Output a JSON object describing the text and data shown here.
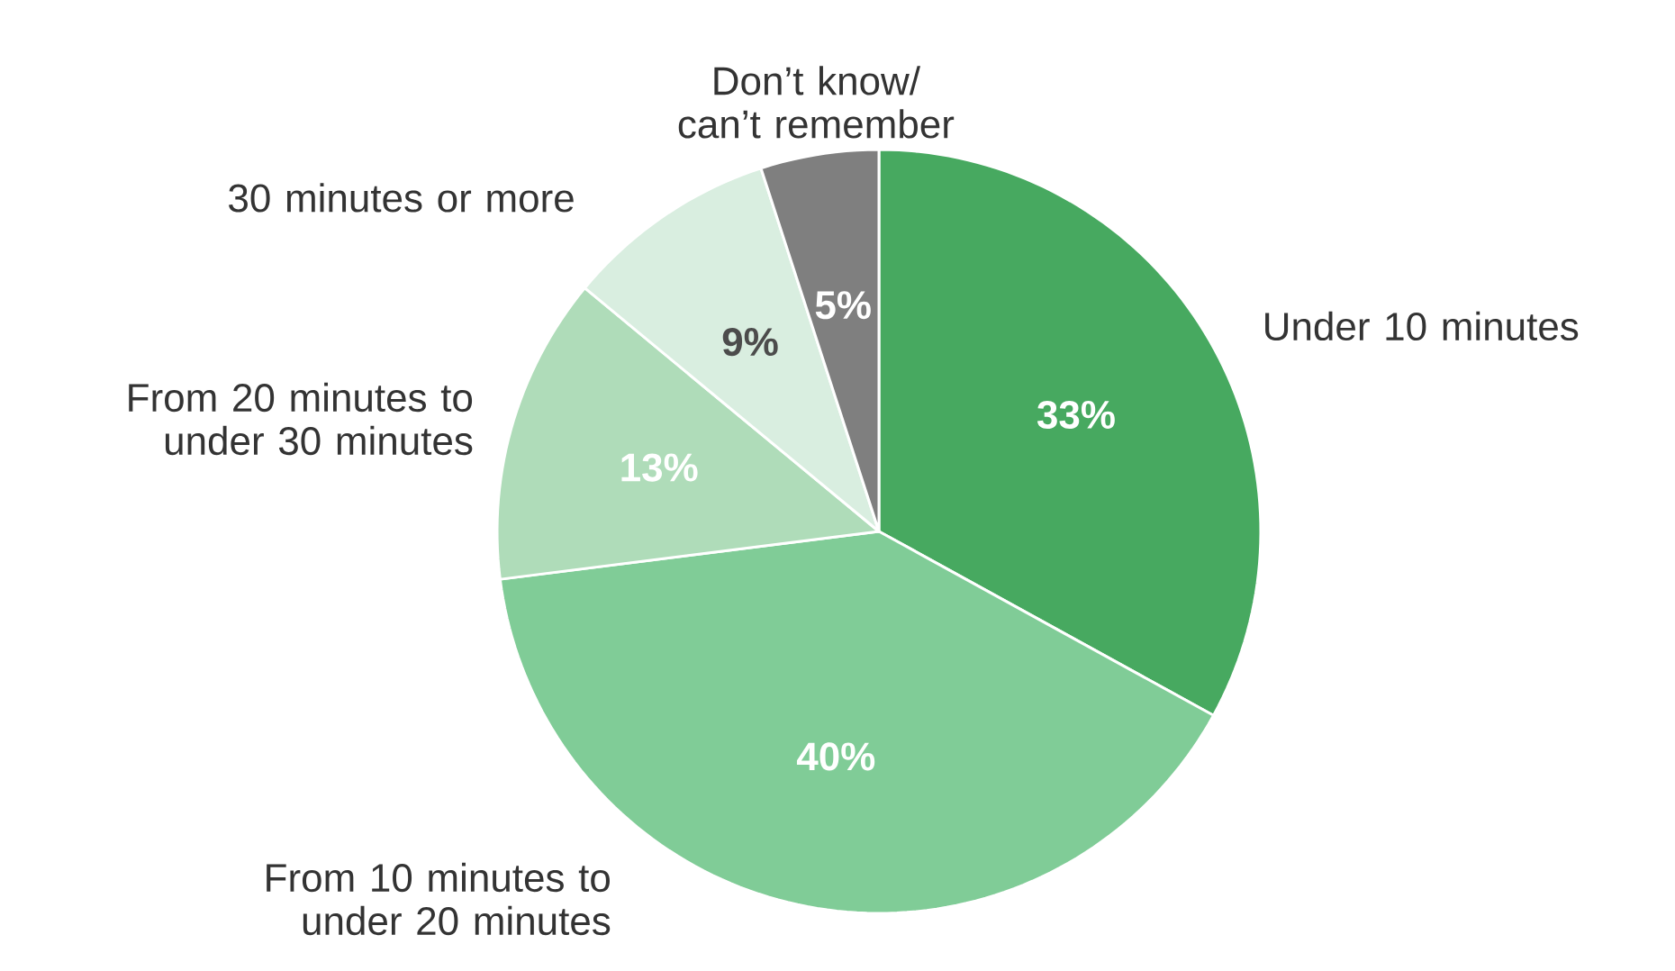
{
  "chart_data": {
    "type": "pie",
    "categories": [
      "Under 10 minutes",
      "From 10 minutes to under 20 minutes",
      "From 20 minutes to under 30 minutes",
      "30 minutes or more",
      "Don’t know/ can’t remember"
    ],
    "values": [
      33,
      40,
      13,
      9,
      5
    ],
    "value_labels": [
      "33%",
      "40%",
      "13%",
      "9%",
      "5%"
    ],
    "colors": [
      "#47a960",
      "#80cc97",
      "#afdcb9",
      "#d9eee0",
      "#7f7f7f"
    ]
  }
}
